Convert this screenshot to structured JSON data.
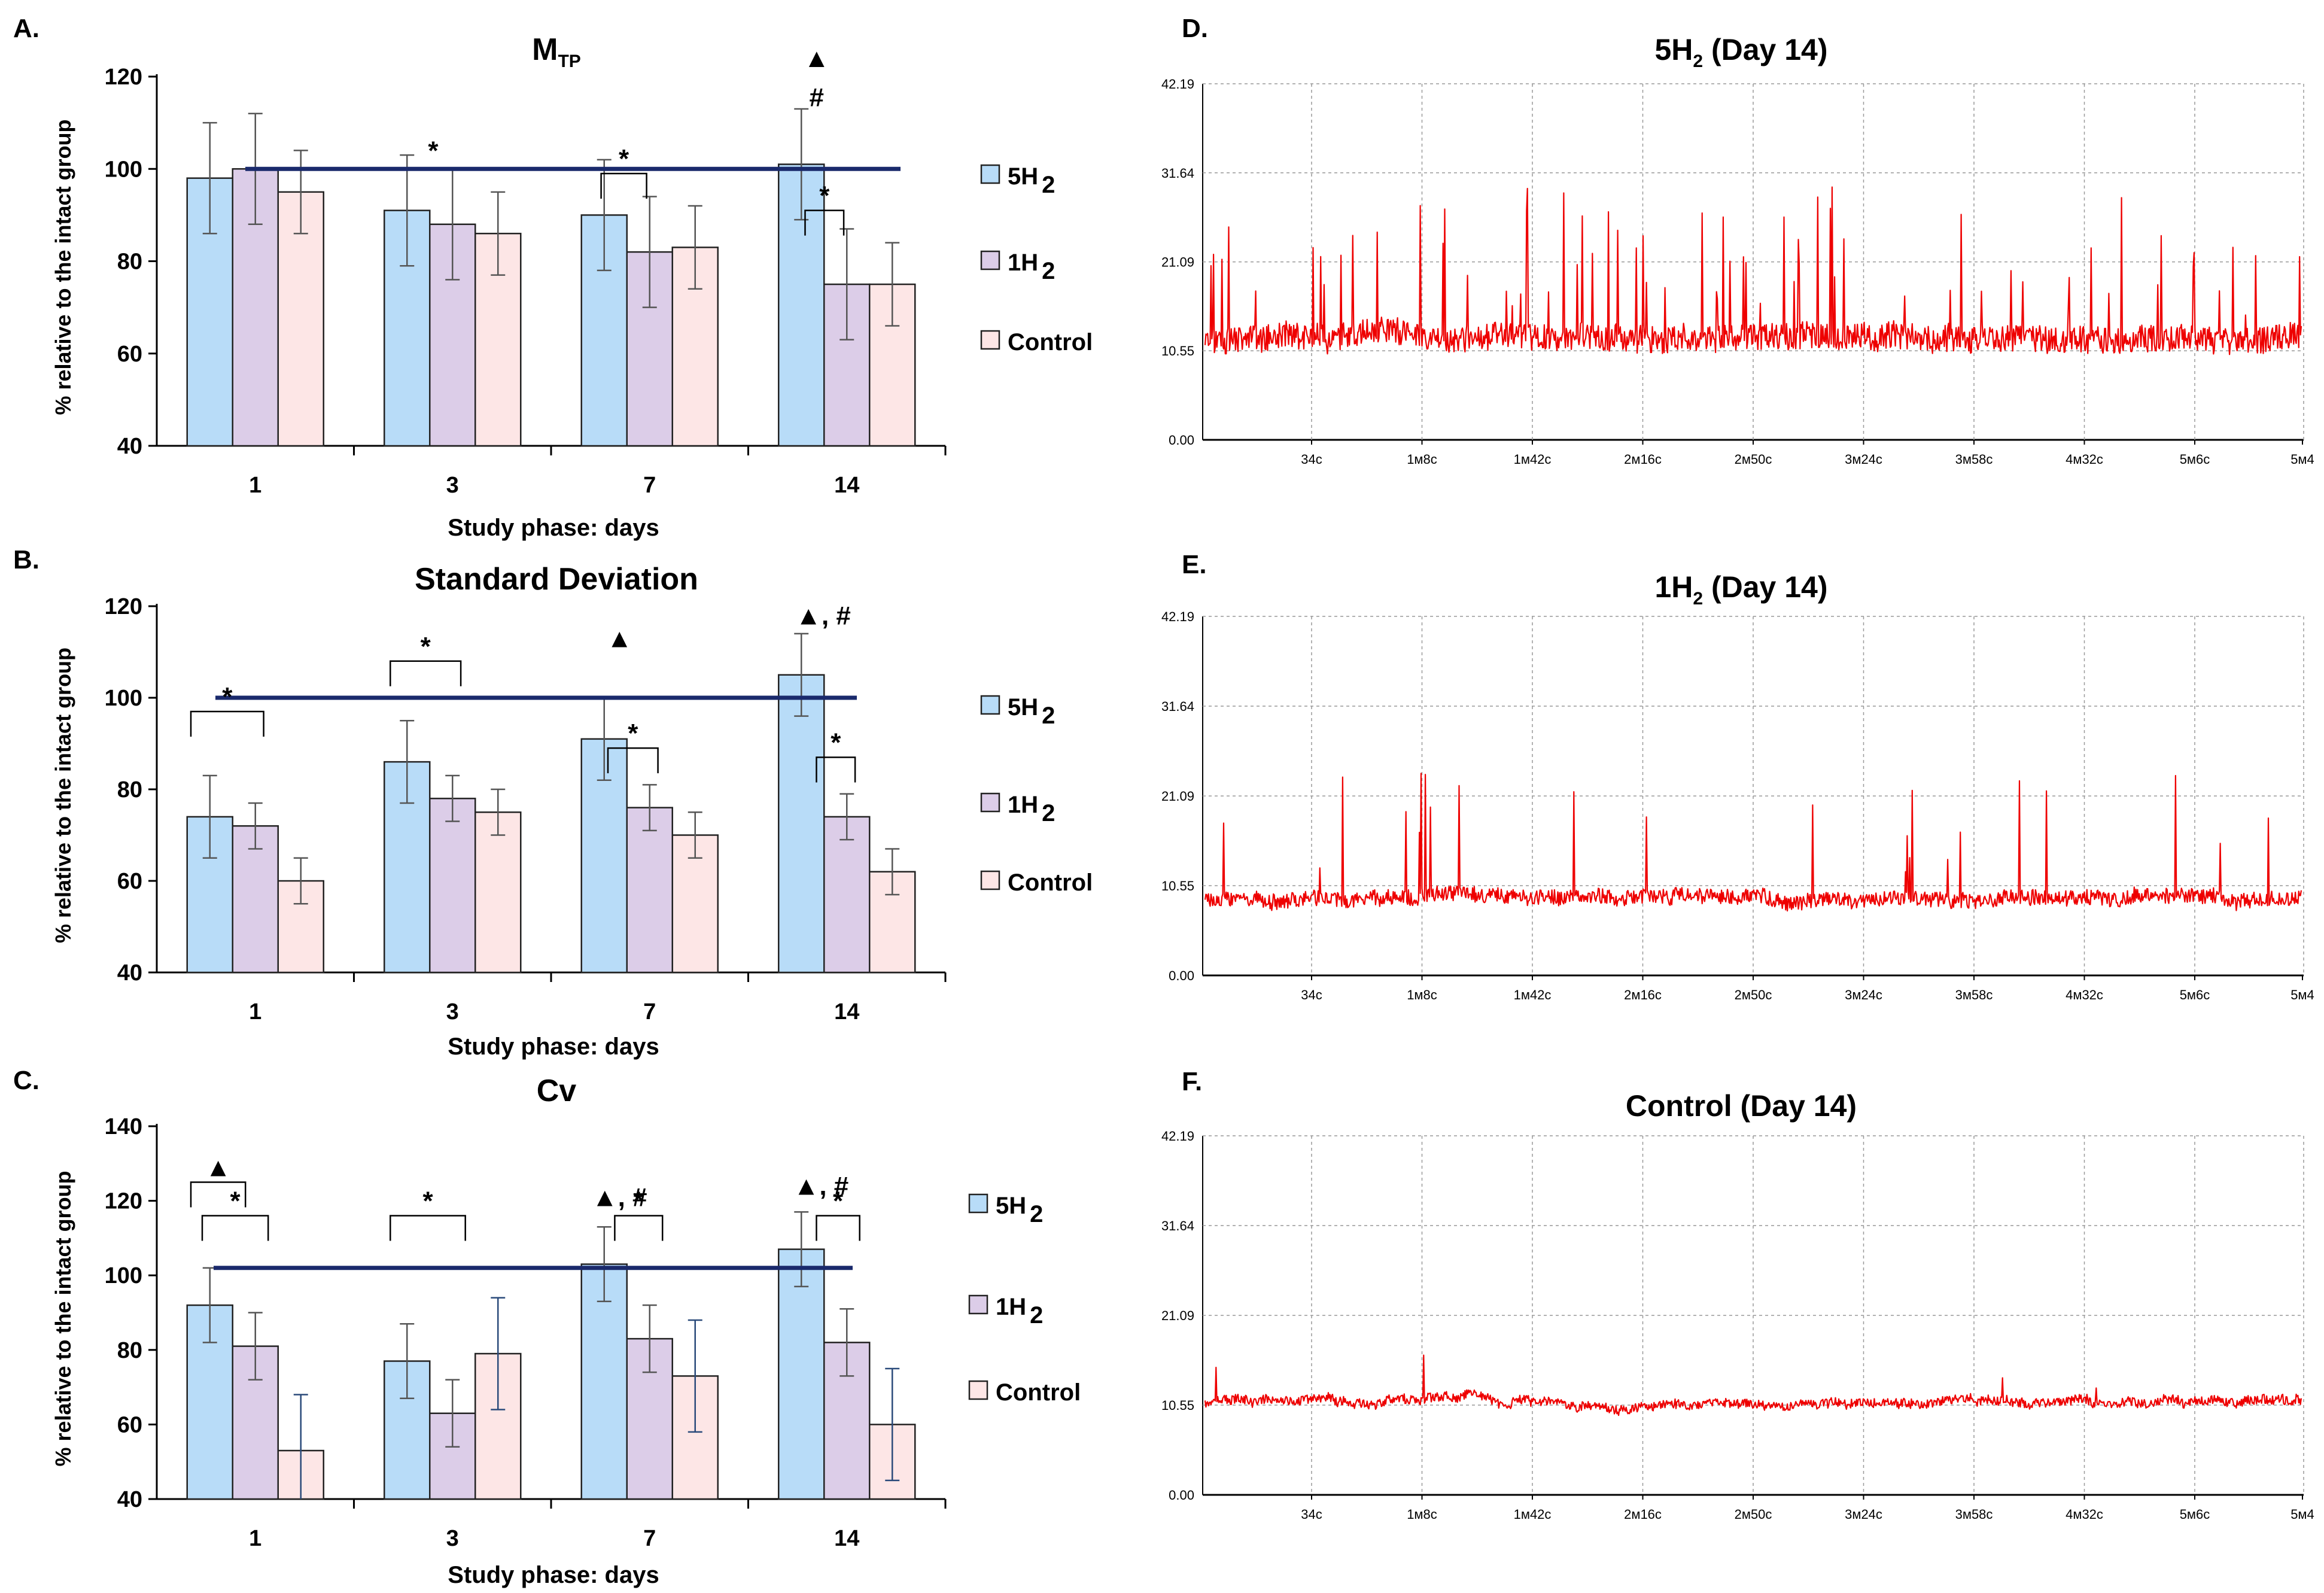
{
  "colors": {
    "5H2": "#b8dcf8",
    "1H2": "#dccde8",
    "Control": "#fde6e6",
    "reference_line": "#1a2a6c",
    "trace": "#ee0000",
    "grid": "#999999"
  },
  "legend": {
    "items": [
      {
        "key": "5H2",
        "label": "5H",
        "sub": "2"
      },
      {
        "key": "1H2",
        "label": "1H",
        "sub": "2"
      },
      {
        "key": "Control",
        "label": "Control",
        "sub": ""
      }
    ]
  },
  "chart_data": [
    {
      "id": "A",
      "panel_label": "A.",
      "type": "bar",
      "title": "M",
      "title_sub": "TP",
      "xlabel": "Study phase: days",
      "ylabel": "% relative to the intact group",
      "categories": [
        "1",
        "3",
        "7",
        "14"
      ],
      "ylim": [
        40,
        120
      ],
      "yticks": [
        "40",
        "60",
        "80",
        "100",
        "120"
      ],
      "reference_line": 100,
      "series": [
        {
          "name": "5H2",
          "values": [
            98,
            91,
            90,
            101
          ],
          "errors": [
            12,
            12,
            12,
            12
          ]
        },
        {
          "name": "1H2",
          "values": [
            100,
            88,
            82,
            75
          ],
          "errors": [
            12,
            12,
            12,
            12
          ]
        },
        {
          "name": "Control",
          "values": [
            95,
            86,
            83,
            75
          ],
          "errors": [
            9,
            9,
            9,
            9
          ]
        }
      ],
      "annotations": [
        {
          "text": "*",
          "kind": "plain",
          "cat": 1,
          "x": 1.25,
          "y": 104
        },
        {
          "text": "*",
          "kind": "bracket",
          "cat": 2,
          "from": 1.1,
          "to": 1.85,
          "y": 99
        },
        {
          "text": "*",
          "kind": "bracket",
          "cat": 3,
          "from": 1.25,
          "to": 1.85,
          "y": 91
        },
        {
          "text": "▲",
          "kind": "plain",
          "cat": 3,
          "x": 1.0,
          "y": 124
        },
        {
          "text": "#",
          "kind": "plain",
          "cat": 3,
          "x": 1.0,
          "y": 115.5
        }
      ]
    },
    {
      "id": "B",
      "panel_label": "B.",
      "type": "bar",
      "title": "Standard Deviation",
      "title_sub": "",
      "xlabel": "Study phase: days",
      "ylabel": "% relative to the intact group",
      "categories": [
        "1",
        "3",
        "7",
        "14"
      ],
      "ylim": [
        40,
        120
      ],
      "yticks": [
        "40",
        "60",
        "80",
        "100",
        "120"
      ],
      "reference_line": 100,
      "series": [
        {
          "name": "5H2",
          "values": [
            74,
            86,
            91,
            105
          ],
          "errors": [
            9,
            9,
            9,
            9
          ]
        },
        {
          "name": "1H2",
          "values": [
            72,
            78,
            76,
            74
          ],
          "errors": [
            5,
            5,
            5,
            5
          ]
        },
        {
          "name": "Control",
          "values": [
            60,
            75,
            70,
            62
          ],
          "errors": [
            5,
            5,
            5,
            5
          ]
        }
      ],
      "annotations": [
        {
          "text": "*",
          "kind": "bracket",
          "cat": 0,
          "from": 0.75,
          "to": 2.1,
          "y": 97
        },
        {
          "text": "*",
          "kind": "bracket",
          "cat": 1,
          "from": 0.8,
          "to": 2.1,
          "y": 108
        },
        {
          "text": "▲",
          "kind": "plain",
          "cat": 2,
          "x": 1.0,
          "y": 113
        },
        {
          "text": "*",
          "kind": "bracket",
          "cat": 2,
          "from": 1.25,
          "to": 2.1,
          "y": 89
        },
        {
          "text": "▲, #",
          "kind": "plain",
          "cat": 3,
          "x": 1.15,
          "y": 118
        },
        {
          "text": "*",
          "kind": "bracket",
          "cat": 3,
          "from": 1.5,
          "to": 2.1,
          "y": 87
        }
      ]
    },
    {
      "id": "C",
      "panel_label": "C.",
      "type": "bar",
      "title": "Cv",
      "title_sub": "",
      "xlabel": "Study phase: days",
      "ylabel": "% relative to the intact group",
      "categories": [
        "1",
        "3",
        "7",
        "14"
      ],
      "ylim": [
        40,
        140
      ],
      "yticks": [
        "40",
        "60",
        "80",
        "100",
        "120",
        "140"
      ],
      "reference_line": 102,
      "series": [
        {
          "name": "5H2",
          "values": [
            92,
            77,
            103,
            107
          ],
          "errors": [
            10,
            10,
            10,
            10
          ]
        },
        {
          "name": "1H2",
          "values": [
            81,
            63,
            83,
            82
          ],
          "errors": [
            9,
            9,
            9,
            9
          ]
        },
        {
          "name": "Control",
          "values": [
            53,
            79,
            73,
            60
          ],
          "errors": [
            15,
            15,
            15,
            15
          ]
        }
      ],
      "annotations": [
        {
          "text": "▲",
          "kind": "bracket",
          "cat": 0,
          "from": 0.75,
          "to": 1.7,
          "y": 125
        },
        {
          "text": "*",
          "kind": "bracket",
          "cat": 0,
          "from": 1.0,
          "to": 2.2,
          "y": 116
        },
        {
          "text": "*",
          "kind": "bracket",
          "cat": 1,
          "from": 0.8,
          "to": 2.2,
          "y": 116
        },
        {
          "text": "▲, #",
          "kind": "plain",
          "cat": 2,
          "x": 1.0,
          "y": 121
        },
        {
          "text": "*",
          "kind": "bracket",
          "cat": 2,
          "from": 1.4,
          "to": 2.2,
          "y": 116
        },
        {
          "text": "▲,  #",
          "kind": "plain",
          "cat": 3,
          "x": 1.1,
          "y": 124
        },
        {
          "text": "*",
          "kind": "bracket",
          "cat": 3,
          "from": 1.5,
          "to": 2.2,
          "y": 116
        }
      ]
    },
    {
      "id": "D",
      "panel_label": "D.",
      "type": "line",
      "title": "5H",
      "title_sub": "2",
      "title_suffix": " (Day 14)",
      "yticks": [
        "42.19",
        "31.64",
        "21.09",
        "10.55",
        "0.00"
      ],
      "ylim": [
        0,
        42.19
      ],
      "xticks": [
        "34c",
        "1м8c",
        "1м42c",
        "2м16c",
        "2м50c",
        "3м24c",
        "3м58c",
        "4м32c",
        "5м6c",
        "5м4"
      ],
      "trace": {
        "seed": 11,
        "baseline": 12.0,
        "noise": 1.6,
        "spike_rate": 0.05,
        "spike_max": 17,
        "spike_min": 4
      }
    },
    {
      "id": "E",
      "panel_label": "E.",
      "type": "line",
      "title": "1H",
      "title_sub": "2",
      "title_suffix": " (Day 14)",
      "yticks": [
        "42.19",
        "31.64",
        "21.09",
        "10.55",
        "0.00"
      ],
      "ylim": [
        0,
        42.19
      ],
      "xticks": [
        "34c",
        "1м8c",
        "1м42c",
        "2м16c",
        "2м50c",
        "3м24c",
        "3м58c",
        "4м32c",
        "5м6c",
        "5м4"
      ],
      "trace": {
        "seed": 23,
        "baseline": 9.2,
        "noise": 0.9,
        "spike_rate": 0.016,
        "spike_max": 15,
        "spike_min": 3
      }
    },
    {
      "id": "F",
      "panel_label": "F.",
      "type": "line",
      "title": "Control (Day 14)",
      "title_sub": "",
      "title_suffix": "",
      "yticks": [
        "42.19",
        "31.64",
        "21.09",
        "10.55",
        "0.00"
      ],
      "ylim": [
        0,
        42.19
      ],
      "xticks": [
        "34c",
        "1м8c",
        "1м42c",
        "2м16c",
        "2м50c",
        "3м24c",
        "3м58c",
        "4м32c",
        "5м6c",
        "5м4"
      ],
      "trace": {
        "seed": 37,
        "baseline": 11.0,
        "noise": 0.55,
        "spike_rate": 0.006,
        "spike_max": 9,
        "spike_min": 2
      }
    }
  ]
}
